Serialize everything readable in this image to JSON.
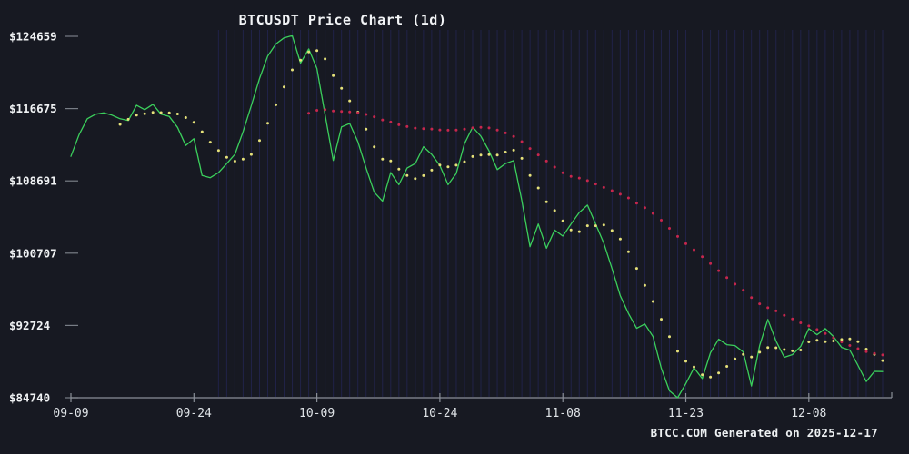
{
  "title": "BTCUSDT Price Chart (1d)",
  "watermark": "BTCC.COM Generated on 2025-12-17",
  "colors": {
    "background": "#171922",
    "grid": "#2a2c6e",
    "axis": "#8a8f98",
    "tick_label": "#dfe3e7",
    "y_label": "#f0f2f4",
    "title": "#f2f4f6",
    "price_line": "#3bcf5c",
    "ma_short": "#e6e27a",
    "ma_long": "#c7274d"
  },
  "chart_data": {
    "type": "line",
    "title": "BTCUSDT Price Chart (1d)",
    "ylim": [
      84740,
      124659
    ],
    "grid": "faint vertical daily gridlines only, no horizontal gridlines",
    "legend": "none",
    "y_ticks": [
      {
        "label": "$124659",
        "value": 124659
      },
      {
        "label": "$116675",
        "value": 116675
      },
      {
        "label": "$108691",
        "value": 108691
      },
      {
        "label": "$100707",
        "value": 100707
      },
      {
        "label": "$92724",
        "value": 92724
      },
      {
        "label": "$84740",
        "value": 84740
      }
    ],
    "x_ticks": [
      {
        "label": "09-09",
        "index": 0
      },
      {
        "label": "09-24",
        "index": 15
      },
      {
        "label": "10-09",
        "index": 30
      },
      {
        "label": "10-24",
        "index": 45
      },
      {
        "label": "11-08",
        "index": 60
      },
      {
        "label": "11-23",
        "index": 75
      },
      {
        "label": "12-08",
        "index": 90
      }
    ],
    "dates": [
      "2025-09-09",
      "2025-09-10",
      "2025-09-11",
      "2025-09-12",
      "2025-09-13",
      "2025-09-14",
      "2025-09-15",
      "2025-09-16",
      "2025-09-17",
      "2025-09-18",
      "2025-09-19",
      "2025-09-20",
      "2025-09-21",
      "2025-09-22",
      "2025-09-23",
      "2025-09-24",
      "2025-09-25",
      "2025-09-26",
      "2025-09-27",
      "2025-09-28",
      "2025-09-29",
      "2025-09-30",
      "2025-10-01",
      "2025-10-02",
      "2025-10-03",
      "2025-10-04",
      "2025-10-05",
      "2025-10-06",
      "2025-10-07",
      "2025-10-08",
      "2025-10-09",
      "2025-10-10",
      "2025-10-11",
      "2025-10-12",
      "2025-10-13",
      "2025-10-14",
      "2025-10-15",
      "2025-10-16",
      "2025-10-17",
      "2025-10-18",
      "2025-10-19",
      "2025-10-20",
      "2025-10-21",
      "2025-10-22",
      "2025-10-23",
      "2025-10-24",
      "2025-10-25",
      "2025-10-26",
      "2025-10-27",
      "2025-10-28",
      "2025-10-29",
      "2025-10-30",
      "2025-10-31",
      "2025-11-01",
      "2025-11-02",
      "2025-11-03",
      "2025-11-04",
      "2025-11-05",
      "2025-11-06",
      "2025-11-07",
      "2025-11-08",
      "2025-11-09",
      "2025-11-10",
      "2025-11-11",
      "2025-11-12",
      "2025-11-13",
      "2025-11-14",
      "2025-11-15",
      "2025-11-16",
      "2025-11-17",
      "2025-11-18",
      "2025-11-19",
      "2025-11-20",
      "2025-11-21",
      "2025-11-22",
      "2025-11-23",
      "2025-11-24",
      "2025-11-25",
      "2025-11-26",
      "2025-11-27",
      "2025-11-28",
      "2025-11-29",
      "2025-11-30",
      "2025-12-01",
      "2025-12-02",
      "2025-12-03",
      "2025-12-04",
      "2025-12-05",
      "2025-12-06",
      "2025-12-07",
      "2025-12-08",
      "2025-12-09",
      "2025-12-10",
      "2025-12-11",
      "2025-12-12",
      "2025-12-13",
      "2025-12-14",
      "2025-12-15",
      "2025-12-16",
      "2025-12-17"
    ],
    "series": [
      {
        "name": "price",
        "style": "solid",
        "color_key": "price_line",
        "values": [
          111400,
          113800,
          115550,
          116050,
          116200,
          115950,
          115550,
          115350,
          117050,
          116550,
          117150,
          116050,
          115800,
          114600,
          112600,
          113350,
          109280,
          109040,
          109600,
          110600,
          111620,
          114130,
          117000,
          120000,
          122480,
          123820,
          124490,
          124730,
          121700,
          123260,
          121100,
          116000,
          110950,
          114650,
          115030,
          113000,
          110110,
          107440,
          106440,
          109610,
          108270,
          110110,
          110610,
          112460,
          111620,
          110400,
          108270,
          109500,
          112800,
          114630,
          113630,
          112000,
          109940,
          110610,
          110940,
          106500,
          101420,
          103930,
          101250,
          103260,
          102590,
          103930,
          105200,
          106010,
          103930,
          101800,
          99000,
          96000,
          94050,
          92400,
          92880,
          91500,
          88000,
          85500,
          84740,
          86300,
          88030,
          86860,
          89700,
          91200,
          90600,
          90500,
          89800,
          86030,
          90500,
          93390,
          91000,
          89200,
          89500,
          90400,
          92380,
          91700,
          92380,
          91500,
          90300,
          90000,
          88300,
          86530,
          87650,
          87630
        ]
      },
      {
        "name": "ma-short-yellow-dotted",
        "style": "dotted",
        "color_key": "ma_short",
        "derived_from": "price",
        "window": 7
      },
      {
        "name": "ma-long-red-dotted",
        "style": "dotted",
        "color_key": "ma_long",
        "derived_from": "price",
        "window": 30
      }
    ]
  }
}
